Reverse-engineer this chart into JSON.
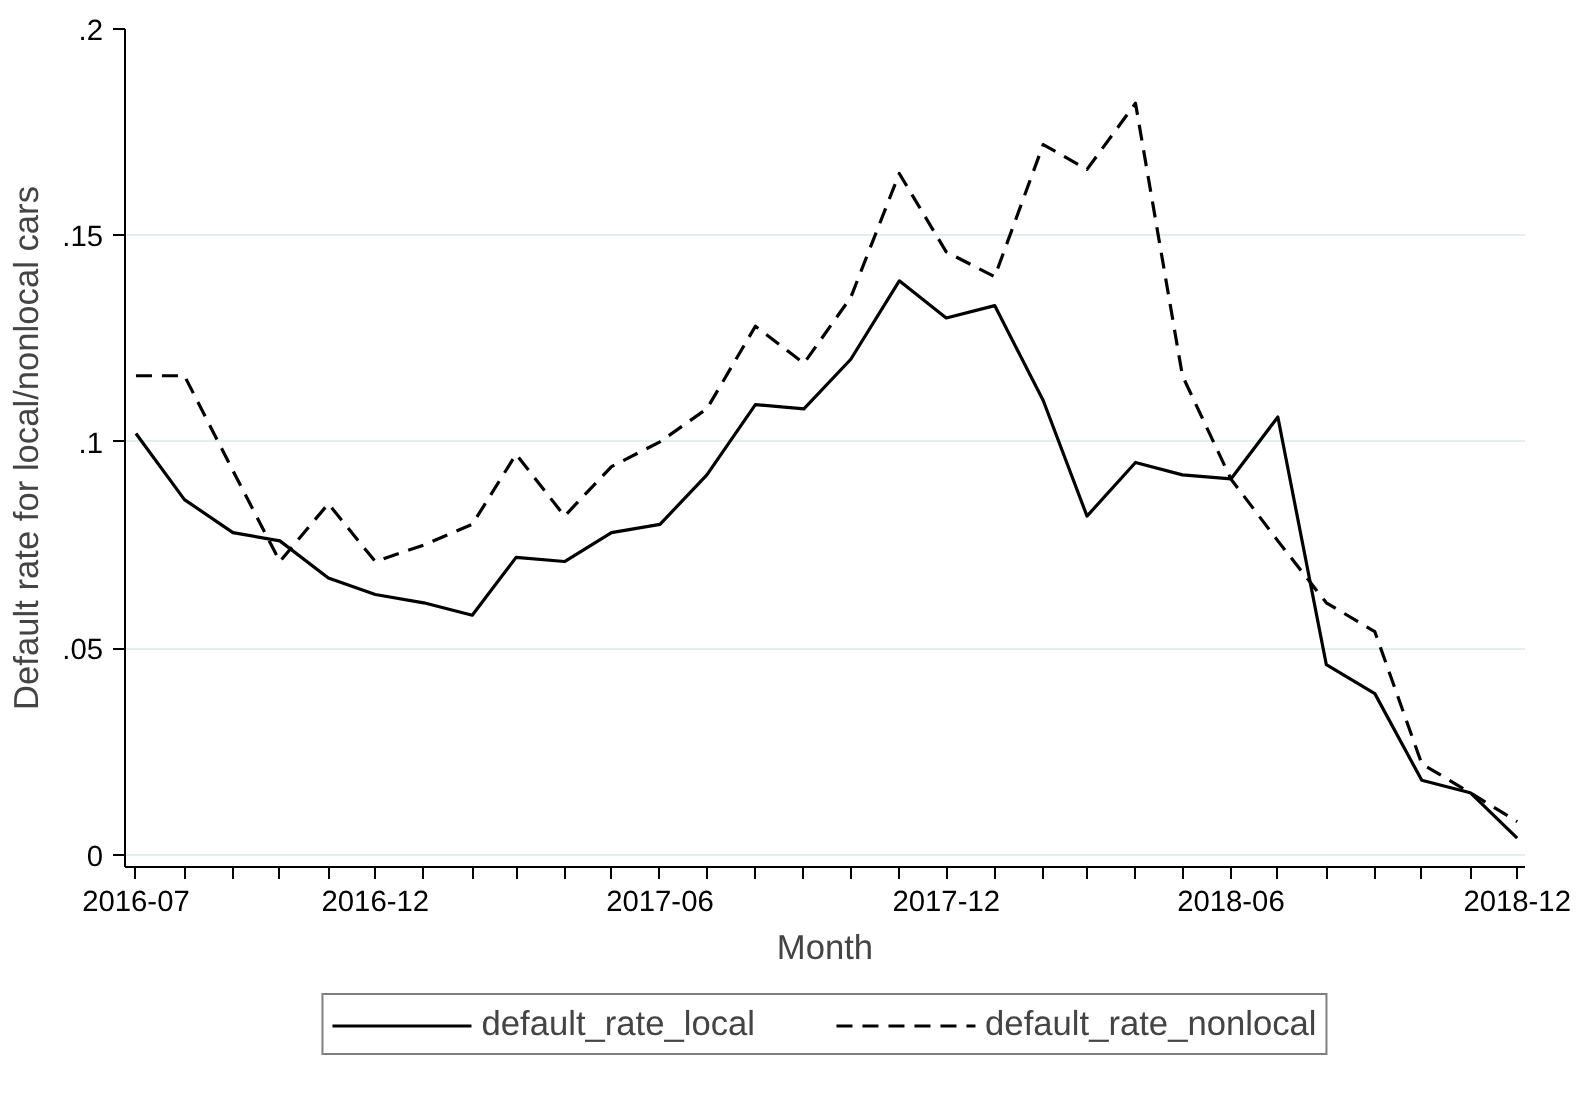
{
  "chart_data": {
    "type": "line",
    "xlabel": "Month",
    "ylabel": "Default rate for local/nonlocal cars",
    "x": [
      "2016-07",
      "2016-08",
      "2016-09",
      "2016-10",
      "2016-11",
      "2016-12",
      "2017-01",
      "2017-02",
      "2017-03",
      "2017-04",
      "2017-05",
      "2017-06",
      "2017-07",
      "2017-08",
      "2017-09",
      "2017-10",
      "2017-11",
      "2017-12",
      "2018-01",
      "2018-02",
      "2018-03",
      "2018-04",
      "2018-05",
      "2018-06",
      "2018-07",
      "2018-08",
      "2018-09",
      "2018-10",
      "2018-11",
      "2018-12"
    ],
    "series": [
      {
        "name": "default_rate_local",
        "color": "#000000",
        "line_style": "solid",
        "values": [
          0.102,
          0.086,
          0.078,
          0.076,
          0.067,
          0.063,
          0.061,
          0.058,
          0.072,
          0.071,
          0.078,
          0.08,
          0.092,
          0.109,
          0.108,
          0.12,
          0.139,
          0.13,
          0.133,
          0.11,
          0.082,
          0.095,
          0.092,
          0.091,
          0.106,
          0.046,
          0.039,
          0.018,
          0.015,
          0.004
        ]
      },
      {
        "name": "default_rate_nonlocal",
        "color": "#000000",
        "line_style": "dashed",
        "values": [
          0.116,
          0.116,
          0.093,
          0.071,
          0.085,
          0.071,
          0.075,
          0.08,
          0.097,
          0.082,
          0.094,
          0.1,
          0.108,
          0.128,
          0.119,
          0.135,
          0.165,
          0.146,
          0.14,
          0.172,
          0.166,
          0.182,
          0.116,
          0.091,
          0.076,
          0.061,
          0.054,
          0.022,
          0.015,
          0.008
        ]
      }
    ],
    "xlim": [
      "2016-06-24",
      "2018-12-06"
    ],
    "xticks": [
      "2016-07",
      {
        "value": "2016-08",
        "label": null
      },
      {
        "value": "2016-09",
        "label": null
      },
      {
        "value": "2016-10",
        "label": null
      },
      {
        "value": "2016-11",
        "label": null
      },
      "2016-12",
      {
        "value": "2017-01",
        "label": null
      },
      {
        "value": "2017-02",
        "label": null
      },
      {
        "value": "2017-03",
        "label": null
      },
      {
        "value": "2017-04",
        "label": null
      },
      {
        "value": "2017-05",
        "label": null
      },
      "2017-06",
      {
        "value": "2017-07",
        "label": null
      },
      {
        "value": "2017-08",
        "label": null
      },
      {
        "value": "2017-09",
        "label": null
      },
      {
        "value": "2017-10",
        "label": null
      },
      {
        "value": "2017-11",
        "label": null
      },
      "2017-12",
      {
        "value": "2018-01",
        "label": null
      },
      {
        "value": "2018-02",
        "label": null
      },
      {
        "value": "2018-03",
        "label": null
      },
      {
        "value": "2018-04",
        "label": null
      },
      {
        "value": "2018-05",
        "label": null
      },
      "2018-06",
      {
        "value": "2018-07",
        "label": null
      },
      {
        "value": "2018-08",
        "label": null
      },
      {
        "value": "2018-09",
        "label": null
      },
      {
        "value": "2018-10",
        "label": null
      },
      {
        "value": "2018-11",
        "label": null
      },
      "2018-12"
    ],
    "ylim": [
      -0.003,
      0.2
    ],
    "yticks": [
      0,
      {
        "value": 0.05,
        "label": ".05"
      },
      {
        "value": 0.1,
        "label": ".1"
      },
      {
        "value": 0.15,
        "label": ".15"
      },
      {
        "value": 0.2,
        "label": ".2"
      }
    ],
    "grid": "y",
    "legend": "bottom",
    "marker": "none"
  }
}
